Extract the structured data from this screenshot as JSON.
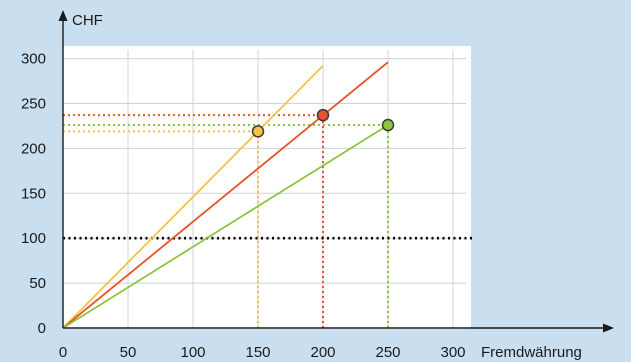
{
  "chart_data": {
    "type": "line",
    "xlabel": "Fremdwährung",
    "ylabel": "CHF",
    "xlim": [
      0,
      310
    ],
    "ylim": [
      0,
      310
    ],
    "x_ticks": [
      0,
      50,
      100,
      150,
      200,
      250,
      300
    ],
    "y_ticks": [
      0,
      50,
      100,
      150,
      200,
      250,
      300
    ],
    "grid": true,
    "series": [
      {
        "color": "#f5c242",
        "points": [
          [
            0,
            0
          ],
          [
            200,
            292
          ]
        ],
        "marker": [
          150,
          219
        ]
      },
      {
        "color": "#e8532b",
        "points": [
          [
            0,
            0
          ],
          [
            250,
            296
          ]
        ],
        "marker": [
          200,
          237
        ]
      },
      {
        "color": "#8cc63f",
        "points": [
          [
            0,
            0
          ],
          [
            250,
            226
          ]
        ],
        "marker": [
          250,
          226
        ]
      }
    ],
    "reference_lines": [
      {
        "y": 100,
        "x_from": 0,
        "x_to": 315,
        "color": "#000000"
      }
    ]
  }
}
